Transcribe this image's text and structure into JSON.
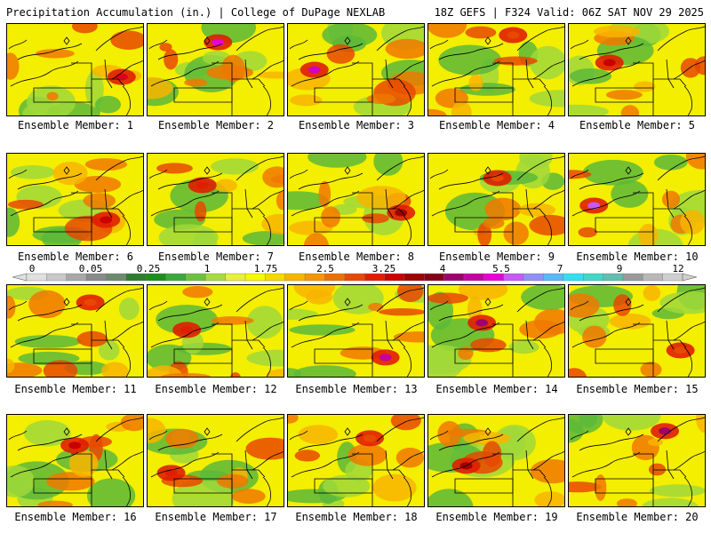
{
  "header": {
    "title_left": "Precipitation Accumulation (in.) | College of DuPage NEXLAB",
    "title_right": "18Z GEFS | F324 Valid: 06Z SAT NOV 29 2025"
  },
  "legend": {
    "tick_labels": [
      "0",
      "0.05",
      "0.25",
      "1",
      "1.75",
      "2.5",
      "3.25",
      "4",
      "5.5",
      "7",
      "9",
      "12"
    ],
    "colors": [
      "#e0e0e0",
      "#c8c8c8",
      "#a8a8a8",
      "#8a8a8a",
      "#6e8a6e",
      "#2e7d32",
      "#1b8f1b",
      "#3aa83a",
      "#6cc23a",
      "#a8dc3a",
      "#e8f03a",
      "#f8f800",
      "#f8d800",
      "#f8b400",
      "#f89400",
      "#f06e00",
      "#e84800",
      "#e01e00",
      "#c80000",
      "#a00000",
      "#880018",
      "#a0006e",
      "#c800a0",
      "#e800d8",
      "#c858f8",
      "#9090f8",
      "#58b8f8",
      "#30e0f0",
      "#40d8c8",
      "#60c0b0",
      "#9a9a9a",
      "#b8b8b8",
      "#cfcfcf"
    ]
  },
  "members": [
    {
      "label": "Ensemble Member: 1",
      "hot": "#d8001e"
    },
    {
      "label": "Ensemble Member: 2",
      "hot": "#e800d8"
    },
    {
      "label": "Ensemble Member: 3",
      "hot": "#d000c0"
    },
    {
      "label": "Ensemble Member: 4",
      "hot": "#e84800"
    },
    {
      "label": "Ensemble Member: 5",
      "hot": "#c80000"
    },
    {
      "label": "Ensemble Member: 6",
      "hot": "#c80000"
    },
    {
      "label": "Ensemble Member: 7",
      "hot": "#e01e00"
    },
    {
      "label": "Ensemble Member: 8",
      "hot": "#a00000"
    },
    {
      "label": "Ensemble Member: 9",
      "hot": "#e84800"
    },
    {
      "label": "Ensemble Member: 10",
      "hot": "#c858f8"
    },
    {
      "label": "Ensemble Member: 11",
      "hot": "#e84800"
    },
    {
      "label": "Ensemble Member: 12",
      "hot": "#e01e00"
    },
    {
      "label": "Ensemble Member: 13",
      "hot": "#c800a0"
    },
    {
      "label": "Ensemble Member: 14",
      "hot": "#a0006e"
    },
    {
      "label": "Ensemble Member: 15",
      "hot": "#e84800"
    },
    {
      "label": "Ensemble Member: 16",
      "hot": "#c80000"
    },
    {
      "label": "Ensemble Member: 17",
      "hot": "#e01e00"
    },
    {
      "label": "Ensemble Member: 18",
      "hot": "#e84800"
    },
    {
      "label": "Ensemble Member: 19",
      "hot": "#a00000"
    },
    {
      "label": "Ensemble Member: 20",
      "hot": "#a0006e"
    }
  ]
}
